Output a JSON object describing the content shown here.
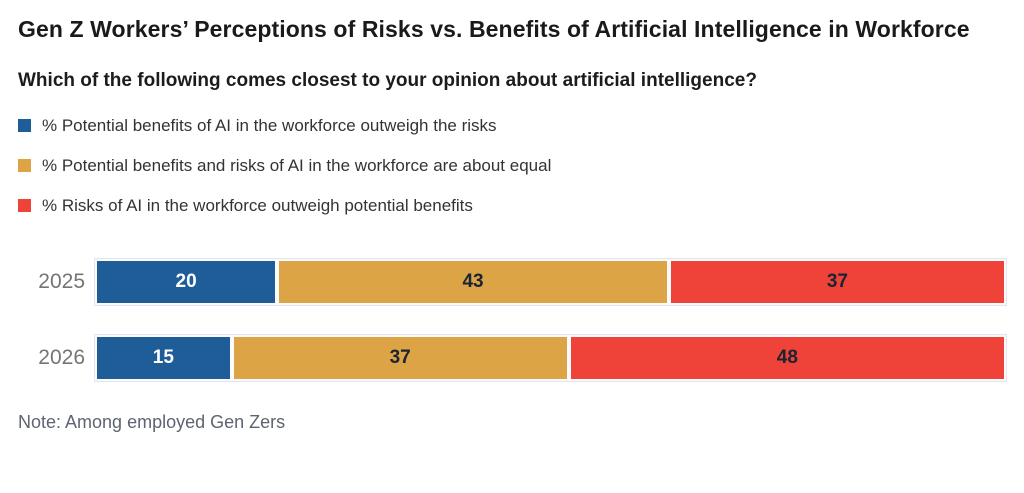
{
  "header": {
    "title": "Gen Z Workers’ Perceptions of Risks vs. Benefits of Artificial Intelligence in Workforce",
    "subtitle": "Which of the following comes closest to your opinion about artificial intelligence?"
  },
  "legend": [
    {
      "label": "% Potential benefits of AI in the workforce outweigh the risks",
      "color": "#1f5d99"
    },
    {
      "label": "% Potential benefits and risks of AI in the workforce are about equal",
      "color": "#dca445"
    },
    {
      "label": "% Risks of AI in the workforce outweigh potential benefits",
      "color": "#ef4238"
    }
  ],
  "note": "Note: Among employed Gen Zers",
  "colors": {
    "benefits_blue": "#1f5d99",
    "equal_gold": "#dca445",
    "risks_red": "#ef4238",
    "title_text": "#1a1a1a",
    "year_label_gray": "#757575",
    "note_gray": "#5d6470"
  },
  "chart_data": {
    "type": "bar",
    "orientation": "horizontal-stacked",
    "title": "Gen Z Workers’ Perceptions of Risks vs. Benefits of Artificial Intelligence in Workforce",
    "subtitle": "Which of the following comes closest to your opinion about artificial intelligence?",
    "categories": [
      "2025",
      "2026"
    ],
    "series": [
      {
        "name": "% Potential benefits of AI in the workforce outweigh the risks",
        "color": "#1f5d99",
        "value_label_color": "#ffffff",
        "values": [
          20,
          15
        ]
      },
      {
        "name": "% Potential benefits and risks of AI in the workforce are about equal",
        "color": "#dca445",
        "value_label_color": "#1a2433",
        "values": [
          43,
          37
        ]
      },
      {
        "name": "% Risks of AI in the workforce outweigh potential benefits",
        "color": "#ef4238",
        "value_label_color": "#1a2433",
        "values": [
          37,
          48
        ]
      }
    ],
    "xlim": [
      0,
      100
    ],
    "value_labels_shown": true,
    "legend_position": "top-left",
    "grid": false,
    "note": "Note: Among employed Gen Zers"
  }
}
